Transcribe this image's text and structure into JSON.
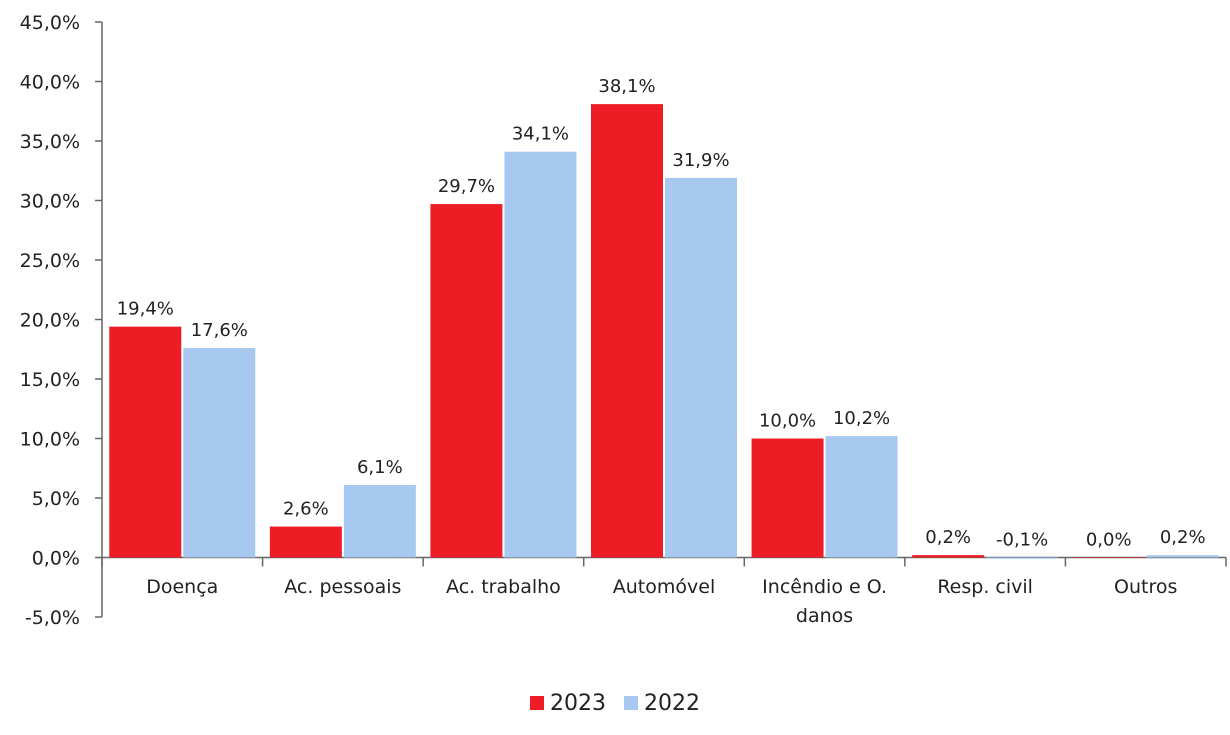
{
  "chart_data": {
    "type": "bar",
    "title": "",
    "xlabel": "",
    "ylabel": "",
    "categories": [
      [
        "Doença"
      ],
      [
        "Ac. pessoais"
      ],
      [
        "Ac. trabalho"
      ],
      [
        "Automóvel"
      ],
      [
        "Incêndio e O.",
        "danos"
      ],
      [
        "Resp. civil"
      ],
      [
        "Outros"
      ]
    ],
    "series": [
      {
        "name": "2023",
        "color": "#ee1c25",
        "values": [
          19.4,
          2.6,
          29.7,
          38.1,
          10.0,
          0.2,
          0.0
        ],
        "labels": [
          "19,4%",
          "2,6%",
          "29,7%",
          "38,1%",
          "10,0%",
          "0,2%",
          "0,0%"
        ]
      },
      {
        "name": "2022",
        "color": "#a7c9ef",
        "values": [
          17.6,
          6.1,
          34.1,
          31.9,
          10.2,
          -0.1,
          0.2
        ],
        "labels": [
          "17,6%",
          "6,1%",
          "34,1%",
          "31,9%",
          "10,2%",
          "-0,1%",
          "0,2%"
        ]
      }
    ],
    "ylim": [
      -5,
      45
    ],
    "yticks": [
      45,
      40,
      35,
      30,
      25,
      20,
      15,
      10,
      5,
      0,
      -5
    ],
    "ytick_labels": [
      "45,0%",
      "40,0%",
      "35,0%",
      "30,0%",
      "25,0%",
      "20,0%",
      "15,0%",
      "10,0%",
      "5,0%",
      "0,0%",
      "-5,0%"
    ],
    "grid": false,
    "legend": "bottom"
  }
}
